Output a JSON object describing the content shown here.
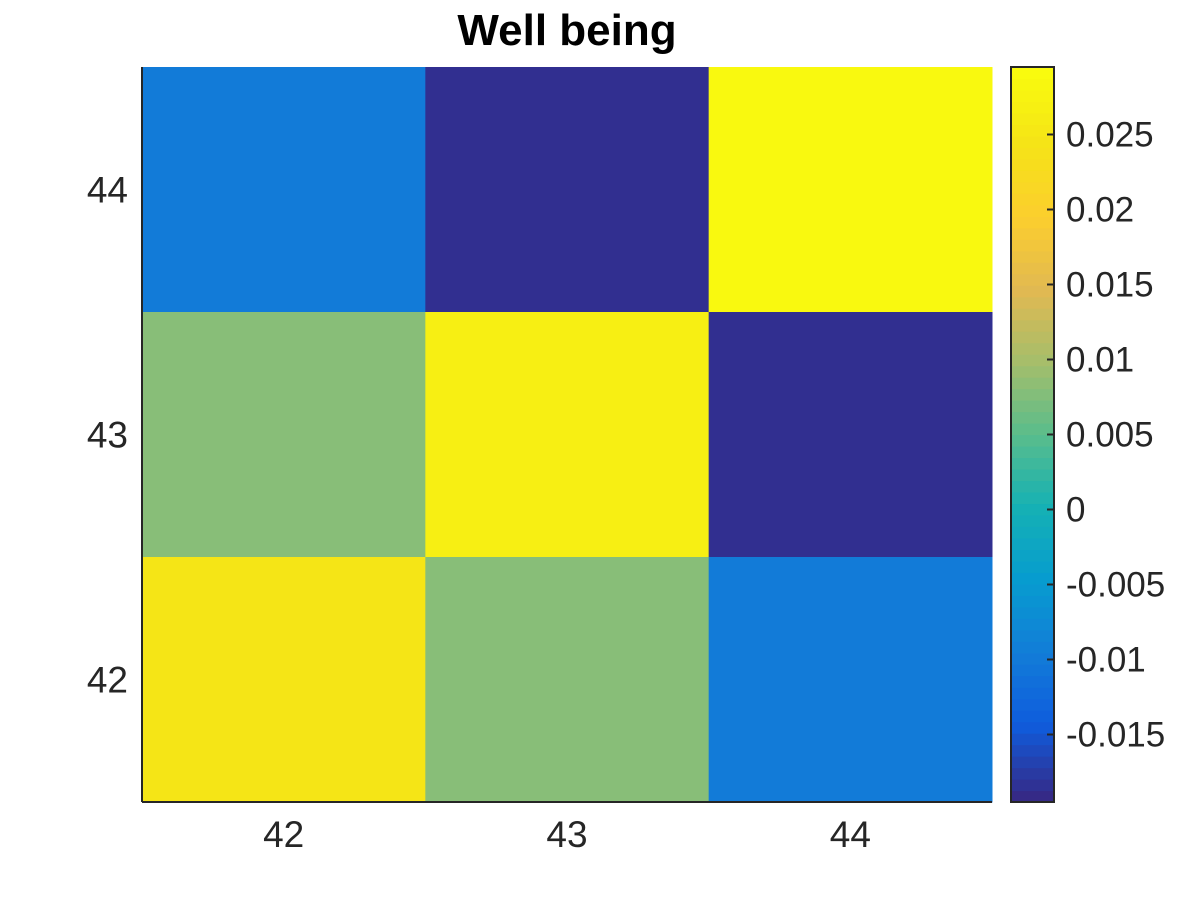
{
  "chart_data": {
    "type": "heatmap",
    "title": "Well being",
    "xlabel": "",
    "ylabel": "",
    "x_categories": [
      "42",
      "43",
      "44"
    ],
    "y_categories": [
      "42",
      "43",
      "44"
    ],
    "rows": [
      {
        "y": "44",
        "values": [
          -0.01,
          -0.019,
          0.029
        ]
      },
      {
        "y": "43",
        "values": [
          0.008,
          0.027,
          -0.019
        ]
      },
      {
        "y": "42",
        "values": [
          0.025,
          0.008,
          -0.01
        ]
      }
    ],
    "colorbar": {
      "range": [
        -0.0195,
        0.0295
      ],
      "ticks": [
        -0.015,
        -0.01,
        -0.005,
        0,
        0.005,
        0.01,
        0.015,
        0.02,
        0.025
      ],
      "tick_labels": [
        "-0.015",
        "-0.01",
        "-0.005",
        "0",
        "0.005",
        "0.01",
        "0.015",
        "0.02",
        "0.025"
      ],
      "colormap": "parula"
    },
    "grid": false
  }
}
